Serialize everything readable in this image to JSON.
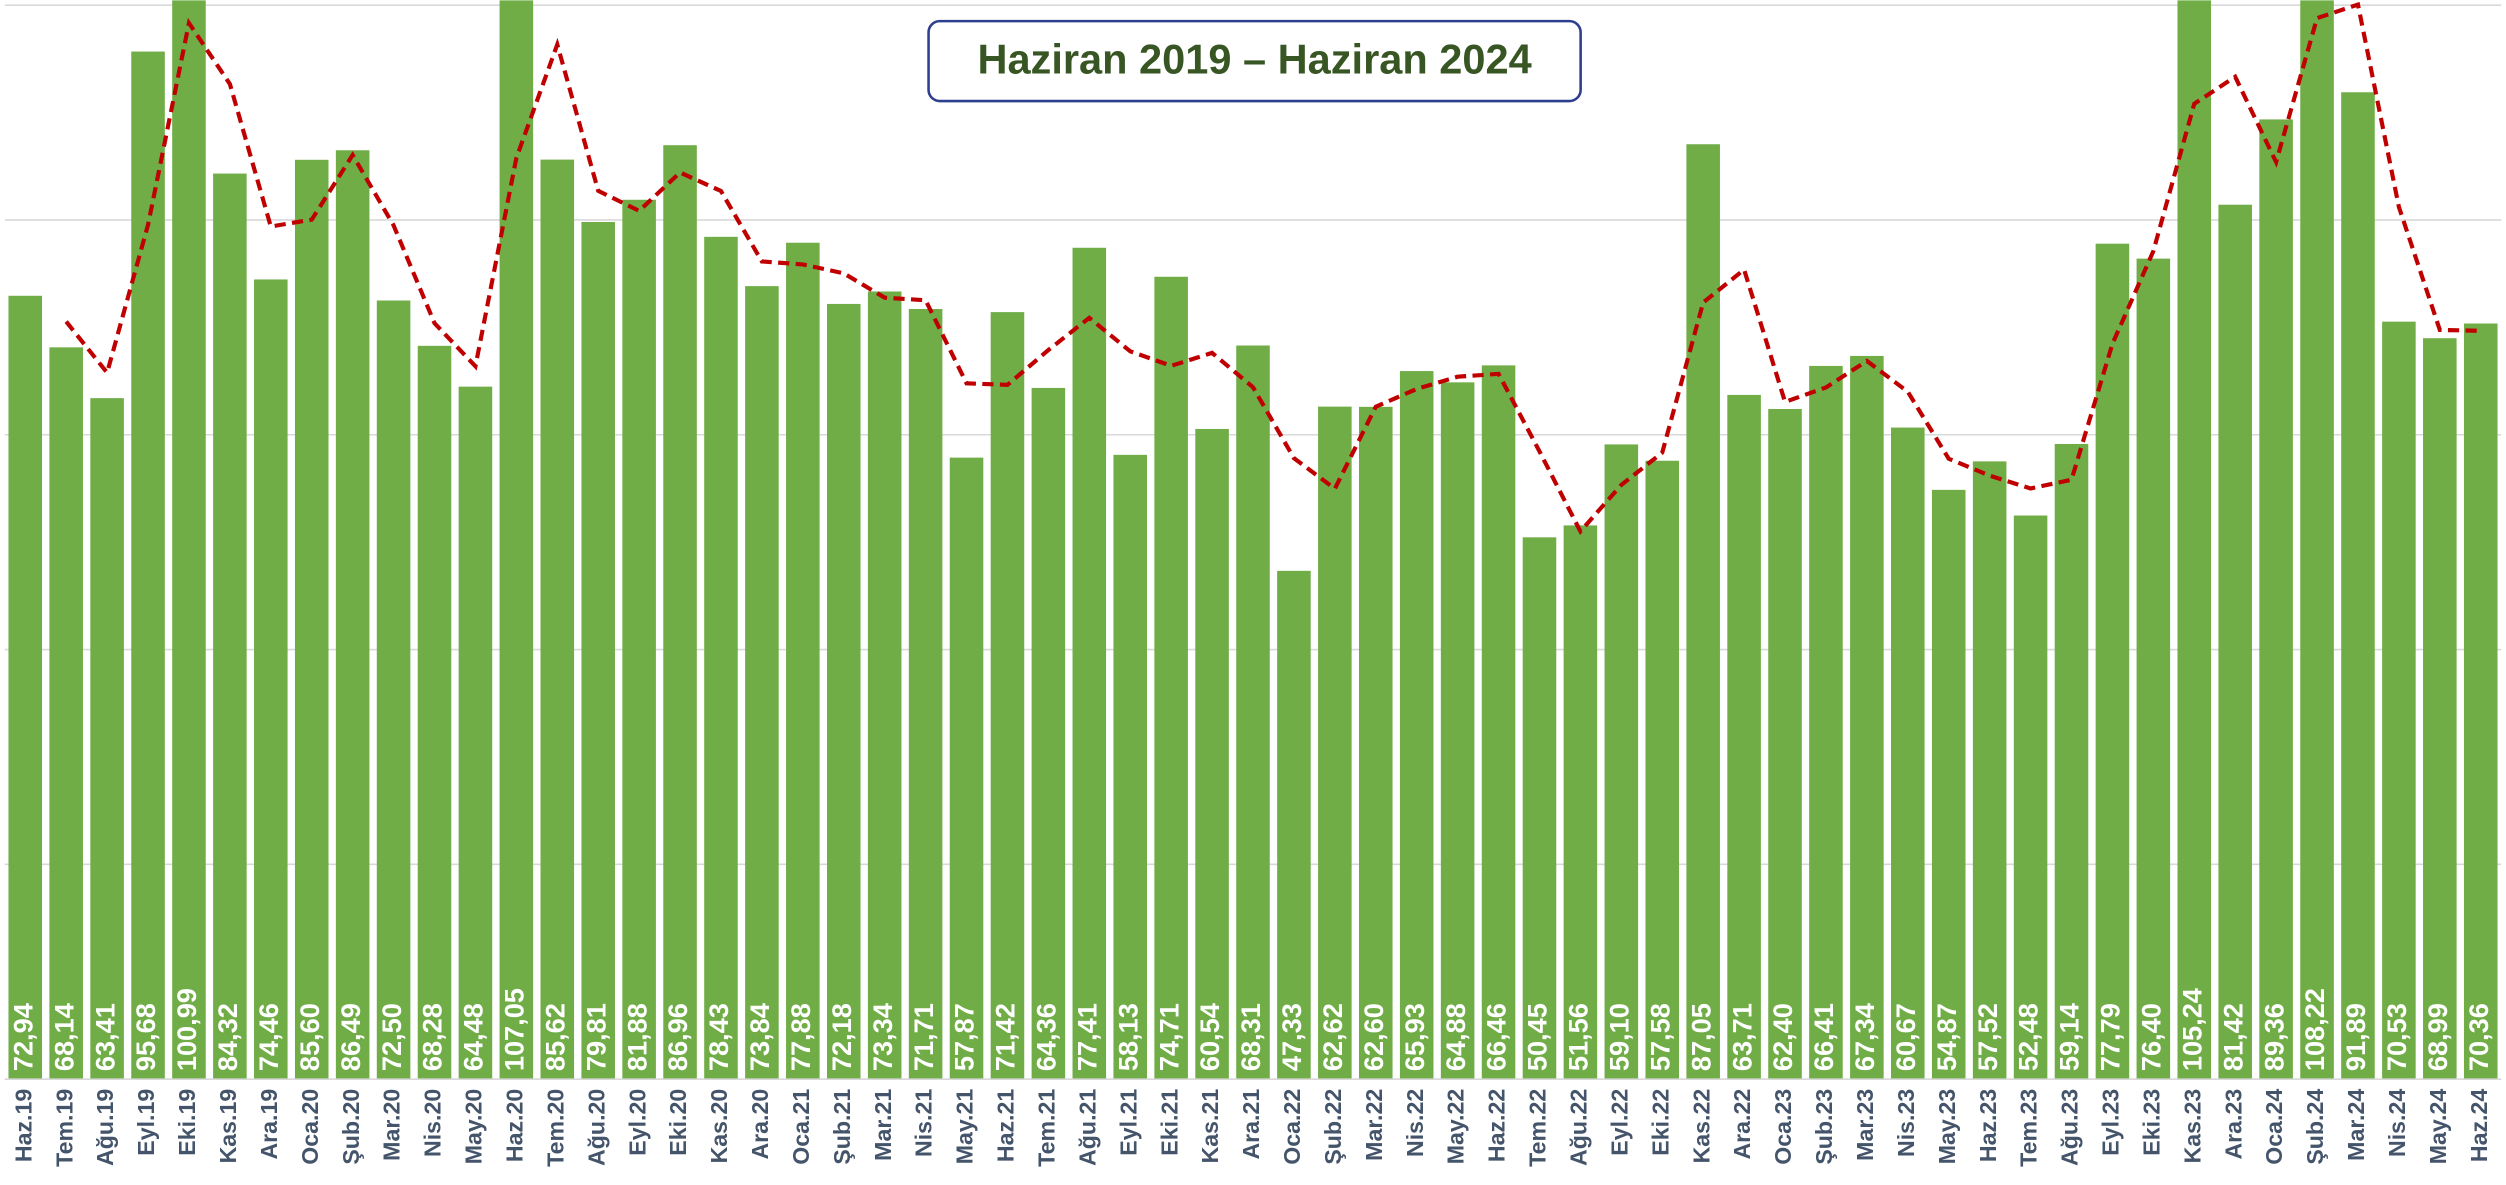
{
  "chart_data": {
    "type": "bar",
    "title": "Haziran 2019 – Haziran 2024",
    "categories": [
      "Haz.19",
      "Tem.19",
      "Ağu.19",
      "Eyl.19",
      "Eki.19",
      "Kas.19",
      "Ara.19",
      "Oca.20",
      "Şub.20",
      "Mar.20",
      "Nis.20",
      "May.20",
      "Haz.20",
      "Tem.20",
      "Ağu.20",
      "Eyl.20",
      "Eki.20",
      "Kas.20",
      "Ara.20",
      "Oca.21",
      "Şub.21",
      "Mar.21",
      "Nis.21",
      "May.21",
      "Haz.21",
      "Tem.21",
      "Ağu.21",
      "Eyl.21",
      "Eki.21",
      "Kas.21",
      "Ara.21",
      "Oca.22",
      "Şub.22",
      "Mar.22",
      "Nis.22",
      "May.22",
      "Haz.22",
      "Tem.22",
      "Ağu.22",
      "Eyl.22",
      "Eki.22",
      "Kas.22",
      "Ara.22",
      "Oca.23",
      "Şub.23",
      "Mar.23",
      "Nis.23",
      "May.23",
      "Haz.23",
      "Tem.23",
      "Ağu.23",
      "Eyl.23",
      "Eki.23",
      "Kas.23",
      "Ara.23",
      "Oca.24",
      "Şub.24",
      "Mar.24",
      "Nis.24",
      "May.24",
      "Haz.24"
    ],
    "series": [
      {
        "type": "bar",
        "color": "#70ad47",
        "values": [
          72.94,
          68.14,
          63.41,
          95.68,
          100.99,
          84.32,
          74.46,
          85.6,
          86.49,
          72.5,
          68.28,
          64.48,
          107.05,
          85.62,
          79.81,
          81.88,
          86.96,
          78.43,
          73.84,
          77.88,
          72.18,
          73.34,
          71.71,
          57.87,
          71.42,
          64.36,
          77.41,
          58.13,
          74.71,
          60.54,
          68.31,
          47.33,
          62.62,
          62.6,
          65.93,
          64.88,
          66.46,
          50.45,
          51.56,
          59.1,
          57.58,
          87.05,
          63.71,
          62.4,
          66.41,
          67.34,
          60.67,
          54.87,
          57.52,
          52.48,
          59.14,
          77.79,
          76.4,
          105.24,
          81.42,
          89.36,
          108.22,
          91.89,
          70.53,
          68.99,
          70.36
        ],
        "value_labels": [
          "72,94",
          "68,14",
          "63,41",
          "95,68",
          "100,99",
          "84,32",
          "74,46",
          "85,60",
          "86,49",
          "72,50",
          "68,28",
          "64,48",
          "107,05",
          "85,62",
          "79,81",
          "81,88",
          "86,96",
          "78,43",
          "73,84",
          "77,88",
          "72,18",
          "73,34",
          "71,71",
          "57,87",
          "71,42",
          "64,36",
          "77,41",
          "58,13",
          "74,71",
          "60,54",
          "68,31",
          "47,33",
          "62,62",
          "62,60",
          "65,93",
          "64,88",
          "66,46",
          "50,45",
          "51,56",
          "59,10",
          "57,58",
          "87,05",
          "63,71",
          "62,40",
          "66,41",
          "67,34",
          "60,67",
          "54,87",
          "57,52",
          "52,48",
          "59,14",
          "77,79",
          "76,40",
          "105,24",
          "81,42",
          "89,36",
          "108,22",
          "91,89",
          "70,53",
          "68,99",
          "70,36"
        ]
      },
      {
        "type": "line",
        "color": "#c00000",
        "dashed": true,
        "values": [
          null,
          70.54,
          65.775,
          79.545,
          98.335,
          92.655,
          79.39,
          80.03,
          86.045,
          79.495,
          70.39,
          66.38,
          85.765,
          96.335,
          82.715,
          80.845,
          84.42,
          82.695,
          76.135,
          75.86,
          75.03,
          72.76,
          72.525,
          64.79,
          64.645,
          67.89,
          70.885,
          67.77,
          66.42,
          67.625,
          64.425,
          57.82,
          54.975,
          62.61,
          64.265,
          65.405,
          65.67,
          58.455,
          51.005,
          55.33,
          58.34,
          72.315,
          75.38,
          63.055,
          64.405,
          66.875,
          64.005,
          57.77,
          56.195,
          55,
          55.81,
          68.465,
          77.095,
          90.82,
          93.33,
          85.39,
          98.79,
          100.055,
          81.21,
          69.76,
          69.675
        ]
      }
    ],
    "ylim": [
      0,
      100
    ],
    "yticks": [
      0,
      20,
      40,
      60,
      80,
      100
    ],
    "grid": true
  }
}
